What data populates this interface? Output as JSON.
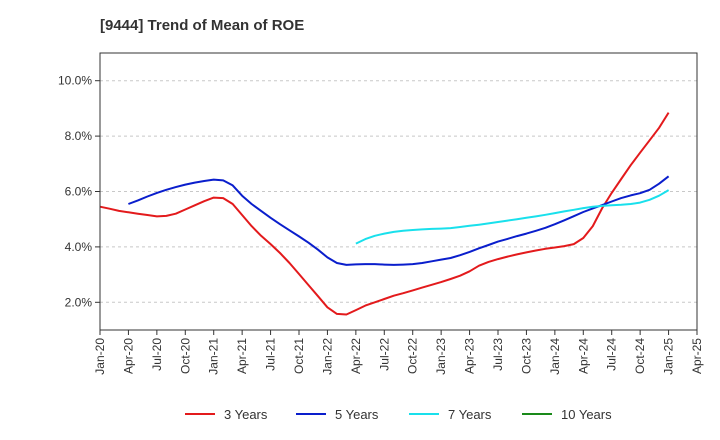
{
  "chart_data": {
    "type": "line",
    "title": "[9444]  Trend of Mean of ROE",
    "xlabel": "",
    "ylabel": "",
    "ylim": [
      1.0,
      11.0
    ],
    "y_ticks": [
      2.0,
      4.0,
      6.0,
      8.0,
      10.0
    ],
    "y_tick_labels": [
      "2.0%",
      "4.0%",
      "6.0%",
      "8.0%",
      "10.0%"
    ],
    "x_ticks": [
      "Jan-20",
      "Apr-20",
      "Jul-20",
      "Oct-20",
      "Jan-21",
      "Apr-21",
      "Jul-21",
      "Oct-21",
      "Jan-22",
      "Apr-22",
      "Jul-22",
      "Oct-22",
      "Jan-23",
      "Apr-23",
      "Jul-23",
      "Oct-23",
      "Jan-24",
      "Apr-24",
      "Jul-24",
      "Oct-24",
      "Jan-25",
      "Apr-25"
    ],
    "grid": "horizontal",
    "legend_position": "bottom",
    "series": [
      {
        "name": "3 Years",
        "color": "#e31a1c",
        "x": [
          "Jan-20",
          "Feb-20",
          "Mar-20",
          "Apr-20",
          "May-20",
          "Jun-20",
          "Jul-20",
          "Aug-20",
          "Sep-20",
          "Oct-20",
          "Nov-20",
          "Dec-20",
          "Jan-21",
          "Feb-21",
          "Mar-21",
          "Apr-21",
          "May-21",
          "Jun-21",
          "Jul-21",
          "Aug-21",
          "Sep-21",
          "Oct-21",
          "Nov-21",
          "Dec-21",
          "Jan-22",
          "Feb-22",
          "Mar-22",
          "Apr-22",
          "May-22",
          "Jun-22",
          "Jul-22",
          "Aug-22",
          "Sep-22",
          "Oct-22",
          "Nov-22",
          "Dec-22",
          "Jan-23",
          "Feb-23",
          "Mar-23",
          "Apr-23",
          "May-23",
          "Jun-23",
          "Jul-23",
          "Aug-23",
          "Sep-23",
          "Oct-23",
          "Nov-23",
          "Dec-23",
          "Jan-24",
          "Feb-24",
          "Mar-24",
          "Apr-24",
          "May-24",
          "Jun-24",
          "Jul-24",
          "Aug-24",
          "Sep-24",
          "Oct-24",
          "Nov-24",
          "Dec-24",
          "Jan-25"
        ],
        "values": [
          5.45,
          5.38,
          5.3,
          5.25,
          5.2,
          5.15,
          5.1,
          5.12,
          5.2,
          5.35,
          5.5,
          5.65,
          5.78,
          5.76,
          5.55,
          5.15,
          4.75,
          4.4,
          4.1,
          3.78,
          3.42,
          3.02,
          2.62,
          2.22,
          1.82,
          1.58,
          1.56,
          1.72,
          1.88,
          2.0,
          2.12,
          2.24,
          2.33,
          2.43,
          2.53,
          2.63,
          2.73,
          2.84,
          2.96,
          3.12,
          3.32,
          3.46,
          3.56,
          3.65,
          3.73,
          3.8,
          3.87,
          3.93,
          3.98,
          4.03,
          4.1,
          4.32,
          4.75,
          5.4,
          5.95,
          6.45,
          6.95,
          7.4,
          7.85,
          8.3,
          8.85
        ]
      },
      {
        "name": "5 Years",
        "color": "#0a1ecc",
        "x": [
          "Apr-20",
          "May-20",
          "Jun-20",
          "Jul-20",
          "Aug-20",
          "Sep-20",
          "Oct-20",
          "Nov-20",
          "Dec-20",
          "Jan-21",
          "Feb-21",
          "Mar-21",
          "Apr-21",
          "May-21",
          "Jun-21",
          "Jul-21",
          "Aug-21",
          "Sep-21",
          "Oct-21",
          "Nov-21",
          "Dec-21",
          "Jan-22",
          "Feb-22",
          "Mar-22",
          "Apr-22",
          "May-22",
          "Jun-22",
          "Jul-22",
          "Aug-22",
          "Sep-22",
          "Oct-22",
          "Nov-22",
          "Dec-22",
          "Jan-23",
          "Feb-23",
          "Mar-23",
          "Apr-23",
          "May-23",
          "Jun-23",
          "Jul-23",
          "Aug-23",
          "Sep-23",
          "Oct-23",
          "Nov-23",
          "Dec-23",
          "Jan-24",
          "Feb-24",
          "Mar-24",
          "Apr-24",
          "May-24",
          "Jun-24",
          "Jul-24",
          "Aug-24",
          "Sep-24",
          "Oct-24",
          "Nov-24",
          "Dec-24",
          "Jan-25"
        ],
        "values": [
          5.55,
          5.68,
          5.82,
          5.95,
          6.06,
          6.16,
          6.25,
          6.32,
          6.38,
          6.43,
          6.4,
          6.22,
          5.85,
          5.55,
          5.3,
          5.05,
          4.82,
          4.6,
          4.38,
          4.15,
          3.9,
          3.62,
          3.42,
          3.35,
          3.37,
          3.38,
          3.38,
          3.36,
          3.35,
          3.36,
          3.38,
          3.42,
          3.48,
          3.54,
          3.6,
          3.7,
          3.82,
          3.95,
          4.07,
          4.19,
          4.29,
          4.39,
          4.48,
          4.58,
          4.69,
          4.82,
          4.96,
          5.11,
          5.26,
          5.39,
          5.51,
          5.64,
          5.76,
          5.86,
          5.94,
          6.06,
          6.28,
          6.55
        ]
      },
      {
        "name": "7 Years",
        "color": "#19e0ec",
        "x": [
          "Apr-22",
          "May-22",
          "Jun-22",
          "Jul-22",
          "Aug-22",
          "Sep-22",
          "Oct-22",
          "Nov-22",
          "Dec-22",
          "Jan-23",
          "Feb-23",
          "Mar-23",
          "Apr-23",
          "May-23",
          "Jun-23",
          "Jul-23",
          "Aug-23",
          "Sep-23",
          "Oct-23",
          "Nov-23",
          "Dec-23",
          "Jan-24",
          "Feb-24",
          "Mar-24",
          "Apr-24",
          "May-24",
          "Jun-24",
          "Jul-24",
          "Aug-24",
          "Sep-24",
          "Oct-24",
          "Nov-24",
          "Dec-24",
          "Jan-25"
        ],
        "values": [
          4.12,
          4.28,
          4.4,
          4.48,
          4.54,
          4.58,
          4.61,
          4.63,
          4.65,
          4.66,
          4.68,
          4.72,
          4.76,
          4.8,
          4.85,
          4.9,
          4.95,
          5.0,
          5.05,
          5.1,
          5.16,
          5.22,
          5.28,
          5.34,
          5.4,
          5.45,
          5.48,
          5.5,
          5.52,
          5.55,
          5.6,
          5.7,
          5.85,
          6.05
        ]
      },
      {
        "name": "10 Years",
        "color": "#1a8a1a",
        "x": [],
        "values": []
      }
    ]
  }
}
